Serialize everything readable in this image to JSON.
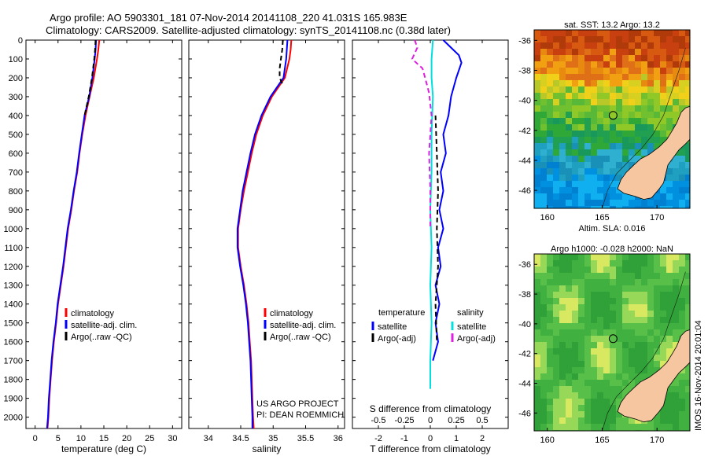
{
  "header": {
    "line1": "Argo profile: AO 5903301_181 07-Nov-2014 20141108_220 41.031S 165.983E",
    "line2": "Climatology: CARS2009. Satellite-adjusted climatology: synTS_20141108.nc (0.38d later)"
  },
  "timestamp": "IMOS 16-Nov-2014 20:01:04",
  "colors": {
    "climatology": "#ff0000",
    "satellite": "#0000ff",
    "argo": "#000000",
    "sal_satellite": "#00e0e0",
    "sal_argo": "#e020e0",
    "land": "#f5c6a0"
  },
  "chart_data": [
    {
      "type": "line",
      "xlabel": "temperature (deg C)",
      "ylabel": "",
      "ylim": [
        2060,
        0
      ],
      "xlim": [
        -2,
        32
      ],
      "y_ticks": [
        0,
        100,
        200,
        300,
        400,
        500,
        600,
        700,
        800,
        900,
        1000,
        1100,
        1200,
        1300,
        1400,
        1500,
        1600,
        1700,
        1800,
        1900,
        2000
      ],
      "x_ticks": [
        0,
        5,
        10,
        15,
        20,
        25,
        30
      ],
      "legend": [
        "climatology",
        "satellite-adj. clim.",
        "Argo(..raw -QC)"
      ],
      "series": [
        {
          "name": "climatology",
          "color": "#ff0000",
          "x": [
            14.0,
            13.8,
            13.5,
            12.8,
            11.9,
            11.0,
            10.3,
            9.7,
            9.2,
            8.5,
            7.9,
            7.2,
            6.7,
            6.2,
            5.6,
            5.0,
            4.6,
            4.1,
            3.7,
            3.4,
            3.1,
            2.9,
            2.8,
            2.7
          ],
          "y": [
            0,
            50,
            100,
            200,
            300,
            400,
            500,
            600,
            700,
            800,
            900,
            1000,
            1100,
            1200,
            1300,
            1400,
            1500,
            1600,
            1700,
            1800,
            1900,
            2000,
            2030,
            2060
          ]
        },
        {
          "name": "satellite-adj. clim.",
          "color": "#0000ff",
          "x": [
            13.3,
            13.2,
            13.0,
            12.5,
            11.8,
            10.8,
            10.2,
            9.6,
            9.1,
            8.4,
            7.8,
            7.1,
            6.6,
            6.1,
            5.5,
            4.9,
            4.5,
            4.0,
            3.6,
            3.3,
            3.0,
            2.8,
            2.7,
            2.6
          ],
          "y": [
            0,
            50,
            100,
            200,
            300,
            400,
            500,
            600,
            700,
            800,
            900,
            1000,
            1100,
            1200,
            1300,
            1400,
            1500,
            1600,
            1700,
            1800,
            1900,
            2000,
            2030,
            2060
          ]
        },
        {
          "name": "Argo(..raw -QC)",
          "color": "#000000",
          "dashed": true,
          "x": [
            13.2,
            13.1,
            12.9,
            12.4,
            11.7,
            10.8
          ],
          "y": [
            0,
            50,
            100,
            200,
            300,
            400
          ]
        }
      ]
    },
    {
      "type": "line",
      "xlabel": "salinity",
      "ylabel": "",
      "ylim": [
        2060,
        0
      ],
      "xlim": [
        33.7,
        36.1
      ],
      "x_ticks": [
        34,
        34.5,
        35,
        35.5,
        36
      ],
      "legend": [
        "climatology",
        "satellite-adj. clim.",
        "Argo(..raw -QC)"
      ],
      "annotation": [
        "US ARGO PROJECT",
        "PI: DEAN ROEMMICH"
      ],
      "series": [
        {
          "name": "climatology",
          "color": "#ff0000",
          "x": [
            35.28,
            35.27,
            35.25,
            35.18,
            34.98,
            34.84,
            34.74,
            34.67,
            34.61,
            34.55,
            34.5,
            34.46,
            34.46,
            34.5,
            34.55,
            34.59,
            34.62,
            34.64,
            34.66,
            34.67,
            34.68,
            34.69,
            34.7
          ],
          "y": [
            0,
            50,
            100,
            200,
            300,
            400,
            500,
            600,
            700,
            800,
            900,
            1000,
            1100,
            1200,
            1300,
            1400,
            1500,
            1600,
            1700,
            1800,
            1900,
            2000,
            2060
          ]
        },
        {
          "name": "satellite-adj. clim.",
          "color": "#0000ff",
          "x": [
            35.22,
            35.21,
            35.2,
            35.16,
            34.96,
            34.82,
            34.72,
            34.65,
            34.59,
            34.53,
            34.49,
            34.45,
            34.45,
            34.49,
            34.54,
            34.58,
            34.61,
            34.63,
            34.65,
            34.66,
            34.67,
            34.68,
            34.68
          ],
          "y": [
            0,
            50,
            100,
            200,
            300,
            400,
            500,
            600,
            700,
            800,
            900,
            1000,
            1100,
            1200,
            1300,
            1400,
            1500,
            1600,
            1700,
            1800,
            1900,
            2000,
            2060
          ]
        },
        {
          "name": "Argo(..raw -QC)",
          "color": "#000000",
          "dashed": true,
          "x": [
            35.15,
            35.14,
            35.12,
            35.1,
            35.1,
            35.14
          ],
          "y": [
            0,
            50,
            100,
            150,
            200,
            230
          ]
        }
      ]
    },
    {
      "type": "line",
      "xlabel": "T difference from climatology",
      "x2label": "S difference from climatology",
      "ylabel": "",
      "ylim": [
        2060,
        0
      ],
      "xlim": [
        -3,
        3
      ],
      "x_ticks": [
        "-2",
        "-1",
        "0",
        "1",
        "2"
      ],
      "x2_ticks": [
        "-0.5",
        "-0.25",
        "0",
        "0.25",
        "0.5"
      ],
      "legend_headers": [
        "temperature",
        "salinity"
      ],
      "legend": [
        "satellite",
        "Argo(-adj)",
        "satellite",
        "Argo(-adj)"
      ],
      "series": [
        {
          "name": "satellite",
          "color": "#0000ff",
          "x": [
            0.5,
            0.8,
            1.1,
            1.2,
            1.0,
            0.8,
            0.7,
            0.5,
            0.6,
            0.4,
            0.5,
            0.35,
            0.5,
            0.3,
            0.4,
            0.2,
            0.35,
            0.2,
            0.3,
            0.1
          ],
          "y": [
            0,
            40,
            80,
            120,
            200,
            300,
            400,
            500,
            600,
            700,
            800,
            900,
            1000,
            1100,
            1200,
            1300,
            1400,
            1500,
            1600,
            1700
          ]
        },
        {
          "name": "Argo(-adj)",
          "color": "#000000",
          "dashed": true,
          "x": [
            0.2,
            0.25,
            0.3,
            0.25,
            0.3,
            0.2,
            0.25
          ],
          "y": [
            400,
            600,
            800,
            1000,
            1200,
            1400,
            1600
          ]
        },
        {
          "name": "satellite",
          "color": "#00e0e0",
          "x": [
            0.1,
            0.05,
            0.05,
            0.1,
            0.05,
            0.05,
            0.0,
            0.05,
            0.0,
            0.05,
            0.0,
            0.0
          ],
          "y": [
            0,
            100,
            200,
            300,
            500,
            700,
            900,
            1100,
            1300,
            1500,
            1700,
            1850
          ]
        },
        {
          "name": "Argo(-adj)",
          "color": "#e020e0",
          "dashed": true,
          "x": [
            -0.6,
            -0.5,
            -0.7,
            -0.3,
            -0.2,
            -0.05,
            0.05,
            -0.05,
            0.0,
            0.0
          ],
          "y": [
            0,
            40,
            100,
            150,
            200,
            280,
            400,
            600,
            800,
            1000
          ]
        }
      ]
    },
    {
      "type": "heatmap",
      "title": "sat. SST: 13.2  Argo: 13.2",
      "x_ticks": [
        160,
        165,
        170
      ],
      "y_ticks": [
        -36,
        -38,
        -40,
        -42,
        -44,
        -46
      ],
      "xlim": [
        158.8,
        173
      ],
      "ylim": [
        -47.2,
        -35.3
      ],
      "marker": {
        "lon": 166.0,
        "lat": -41.0
      }
    },
    {
      "type": "heatmap",
      "title": "Altim. SLA: 0.016",
      "subtitle": "Argo h1000: -0.028 h2000: NaN",
      "x_ticks": [
        160,
        165,
        170
      ],
      "y_ticks": [
        -36,
        -38,
        -40,
        -42,
        -44,
        -46
      ],
      "xlim": [
        158.8,
        173
      ],
      "ylim": [
        -47.2,
        -35.3
      ],
      "marker": {
        "lon": 166.0,
        "lat": -41.0
      }
    }
  ]
}
